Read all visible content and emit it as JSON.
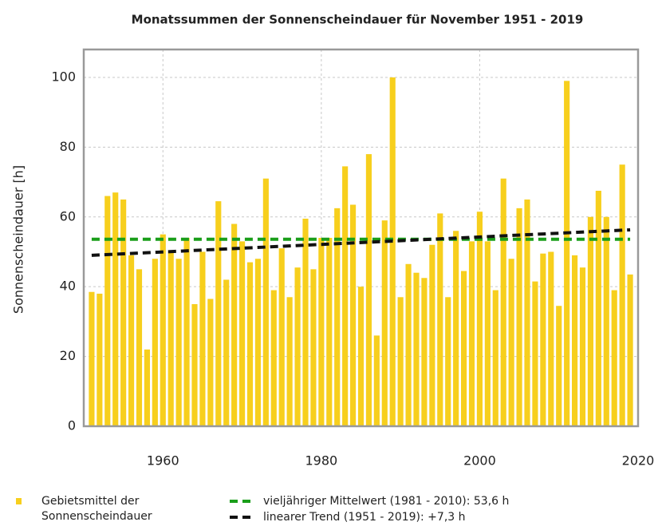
{
  "chart_data": {
    "type": "bar",
    "title": "Monatssummen der Sonnenscheindauer für November 1951 - 2019",
    "y_label": "Sonnenscheindauer [h]",
    "x": [
      1951,
      1952,
      1953,
      1954,
      1955,
      1956,
      1957,
      1958,
      1959,
      1960,
      1961,
      1962,
      1963,
      1964,
      1965,
      1966,
      1967,
      1968,
      1969,
      1970,
      1971,
      1972,
      1973,
      1974,
      1975,
      1976,
      1977,
      1978,
      1979,
      1980,
      1981,
      1982,
      1983,
      1984,
      1985,
      1986,
      1987,
      1988,
      1989,
      1990,
      1991,
      1992,
      1993,
      1994,
      1995,
      1996,
      1997,
      1998,
      1999,
      2000,
      2001,
      2002,
      2003,
      2004,
      2005,
      2006,
      2007,
      2008,
      2009,
      2010,
      2011,
      2012,
      2013,
      2014,
      2015,
      2016,
      2017,
      2018,
      2019
    ],
    "series": [
      {
        "name": "Gebietsmittel der Sonnenscheindauer",
        "type": "bar",
        "color": "#f7cf1d",
        "values": [
          38.5,
          38,
          66,
          67,
          65,
          49,
          45,
          22,
          48,
          55,
          50,
          48,
          54,
          35,
          50,
          36.5,
          64.5,
          42,
          58,
          53,
          47,
          48,
          71,
          39,
          51,
          37,
          45.5,
          59.5,
          45,
          54,
          54,
          62.5,
          74.5,
          63.5,
          40,
          78,
          26,
          59,
          100,
          37,
          46.5,
          44,
          42.5,
          52,
          61,
          37,
          56,
          44.5,
          53,
          61.5,
          53,
          39,
          71,
          48,
          62.5,
          65,
          41.5,
          49.5,
          50,
          34.5,
          99,
          49,
          45.5,
          60,
          67.5,
          60,
          39,
          75,
          43.5
        ]
      },
      {
        "name": "vieljähriger Mittelwert (1981 - 2010): 53,6 h",
        "type": "line",
        "color": "#1a9e1a",
        "x": [
          1951,
          2019
        ],
        "values": [
          53.6,
          53.6
        ]
      },
      {
        "name": "linearer Trend (1951 - 2019): +7,3 h",
        "type": "line",
        "color": "#111111",
        "x": [
          1951,
          2019
        ],
        "values": [
          49,
          56.3
        ]
      }
    ],
    "xlim": [
      1950,
      2020
    ],
    "xticks": [
      1960,
      1980,
      2000,
      2020
    ],
    "ylim": [
      0,
      108
    ],
    "yticks": [
      0,
      20,
      40,
      60,
      80,
      100
    ],
    "grid": true
  }
}
